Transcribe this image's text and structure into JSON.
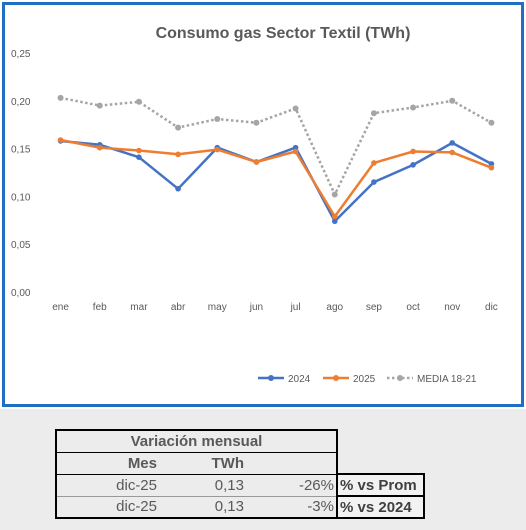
{
  "chart_data": {
    "type": "line",
    "title": "Consumo gas Sector Textil (TWh)",
    "categories": [
      "ene",
      "feb",
      "mar",
      "abr",
      "may",
      "jun",
      "jul",
      "ago",
      "sep",
      "oct",
      "nov",
      "dic"
    ],
    "ylim": [
      0,
      0.25
    ],
    "yticks": [
      "0,00",
      "0,05",
      "0,10",
      "0,15",
      "0,20",
      "0,25"
    ],
    "grid": false,
    "legend_position": "bottom-right",
    "series": [
      {
        "name": "2024",
        "color": "#4472c4",
        "style": "solid",
        "values": [
          0.158,
          0.154,
          0.141,
          0.108,
          0.151,
          0.136,
          0.151,
          0.074,
          0.115,
          0.133,
          0.156,
          0.134
        ]
      },
      {
        "name": "2025",
        "color": "#ed7d31",
        "style": "solid",
        "values": [
          0.159,
          0.151,
          0.148,
          0.144,
          0.149,
          0.136,
          0.147,
          0.079,
          0.135,
          0.147,
          0.146,
          0.13
        ]
      },
      {
        "name": "MEDIA 18-21",
        "color": "#a5a5a5",
        "style": "dotted",
        "values": [
          0.203,
          0.195,
          0.199,
          0.172,
          0.181,
          0.177,
          0.192,
          0.102,
          0.187,
          0.193,
          0.2,
          0.177
        ]
      }
    ]
  },
  "table": {
    "title": "Variación mensual",
    "headers": {
      "mes": "Mes",
      "twh": "TWh"
    },
    "rows": [
      {
        "mes": "dic-25",
        "twh": "0,13",
        "pct": "-26%",
        "label": "% vs Prom"
      },
      {
        "mes": "dic-25",
        "twh": "0,13",
        "pct": "-3%",
        "label": "% vs 2024"
      }
    ]
  }
}
